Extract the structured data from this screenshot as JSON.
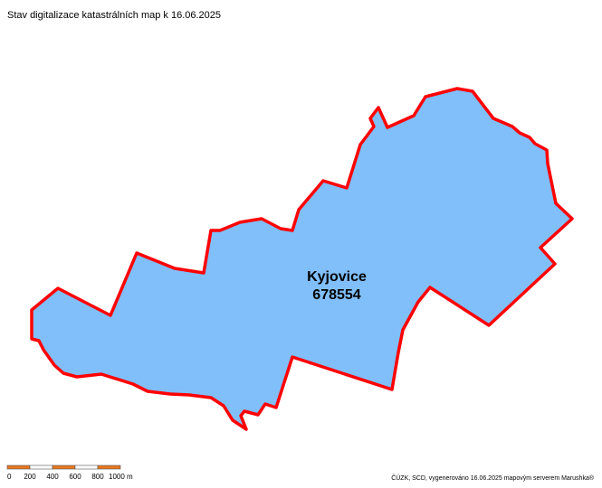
{
  "header": {
    "title": "Stav digitalizace katastrálních map k 16.06.2025"
  },
  "map": {
    "region": {
      "name": "Kyjovice",
      "code": "678554"
    }
  },
  "scale_bar": {
    "labels": [
      "0",
      "200",
      "400",
      "600",
      "800",
      "1000 m"
    ]
  },
  "footer": {
    "credit": "ČÚZK, SCD, vygenerováno 16.06.2025 mapovým serverem Marushka®"
  }
}
